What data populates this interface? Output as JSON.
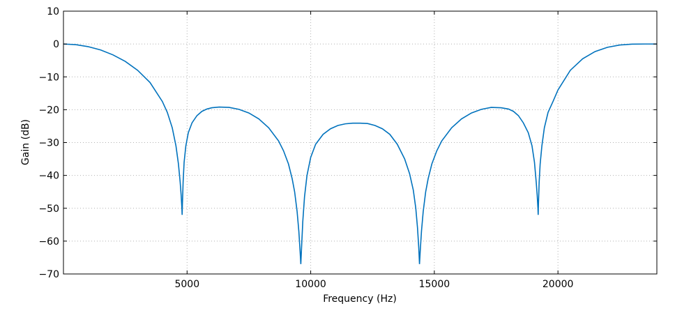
{
  "chart_data": {
    "type": "line",
    "xlabel": "Frequency (Hz)",
    "ylabel": "Gain (dB)",
    "xlim": [
      0,
      24000
    ],
    "ylim": [
      -70,
      10
    ],
    "x_ticks": [
      5000,
      10000,
      15000,
      20000
    ],
    "x_tick_labels": [
      "5000",
      "10000",
      "15000",
      "20000"
    ],
    "y_ticks": [
      10,
      0,
      -10,
      -20,
      -30,
      -40,
      -50,
      -60,
      -70
    ],
    "y_tick_labels": [
      "10",
      "0",
      "−10",
      "−20",
      "−30",
      "−40",
      "−50",
      "−60",
      "−70"
    ],
    "grid": true,
    "line_color": "#0072bd",
    "series": [
      {
        "x": [
          0,
          500,
          1000,
          1500,
          2000,
          2500,
          3000,
          3500,
          4000,
          4200,
          4400,
          4550,
          4650,
          4720,
          4760,
          4790,
          4800,
          4810,
          4840,
          4880,
          4950,
          5050,
          5200,
          5400,
          5600,
          5800,
          6000,
          6300,
          6700,
          7100,
          7500,
          7900,
          8300,
          8700,
          8900,
          9100,
          9250,
          9350,
          9450,
          9520,
          9570,
          9600,
          9630,
          9680,
          9750,
          9850,
          10000,
          10200,
          10500,
          10800,
          11100,
          11400,
          11700,
          12000,
          12300,
          12600,
          12900,
          13200,
          13500,
          13800,
          14000,
          14150,
          14250,
          14320,
          14370,
          14400,
          14430,
          14480,
          14550,
          14650,
          14750,
          14900,
          15100,
          15300,
          15700,
          16100,
          16500,
          16900,
          17300,
          17700,
          18000,
          18200,
          18400,
          18600,
          18800,
          18950,
          19050,
          19120,
          19160,
          19190,
          19200,
          19210,
          19240,
          19280,
          19350,
          19450,
          19600,
          19800,
          20000,
          20500,
          21000,
          21500,
          22000,
          22500,
          23000,
          23500,
          24000
        ],
        "y": [
          0,
          -0.2,
          -0.8,
          -1.8,
          -3.3,
          -5.3,
          -8.0,
          -11.7,
          -17.5,
          -20.8,
          -25.5,
          -31.0,
          -36.5,
          -42.0,
          -46.0,
          -50.0,
          -52.0,
          -49.0,
          -42.0,
          -36.0,
          -31.0,
          -27.0,
          -24.0,
          -21.8,
          -20.5,
          -19.8,
          -19.4,
          -19.2,
          -19.3,
          -19.9,
          -21.0,
          -22.8,
          -25.5,
          -29.5,
          -32.5,
          -36.5,
          -41.0,
          -45.0,
          -51.0,
          -57.0,
          -63.0,
          -67.0,
          -62.0,
          -54.0,
          -46.5,
          -40.0,
          -34.5,
          -30.5,
          -27.5,
          -25.8,
          -24.8,
          -24.3,
          -24.1,
          -24.1,
          -24.2,
          -24.8,
          -25.8,
          -27.5,
          -30.5,
          -35.0,
          -39.5,
          -44.5,
          -50.0,
          -56.0,
          -62.0,
          -67.0,
          -63.0,
          -57.0,
          -51.0,
          -45.0,
          -41.0,
          -36.5,
          -32.5,
          -29.5,
          -25.5,
          -22.8,
          -21.0,
          -19.9,
          -19.3,
          -19.4,
          -19.8,
          -20.5,
          -21.8,
          -24.0,
          -27.0,
          -31.0,
          -36.0,
          -42.0,
          -46.0,
          -50.0,
          -52.0,
          -49.0,
          -42.0,
          -36.5,
          -31.0,
          -25.5,
          -20.8,
          -17.5,
          -14.0,
          -8.0,
          -4.5,
          -2.3,
          -1.0,
          -0.3,
          -0.05,
          0,
          0
        ]
      }
    ]
  }
}
